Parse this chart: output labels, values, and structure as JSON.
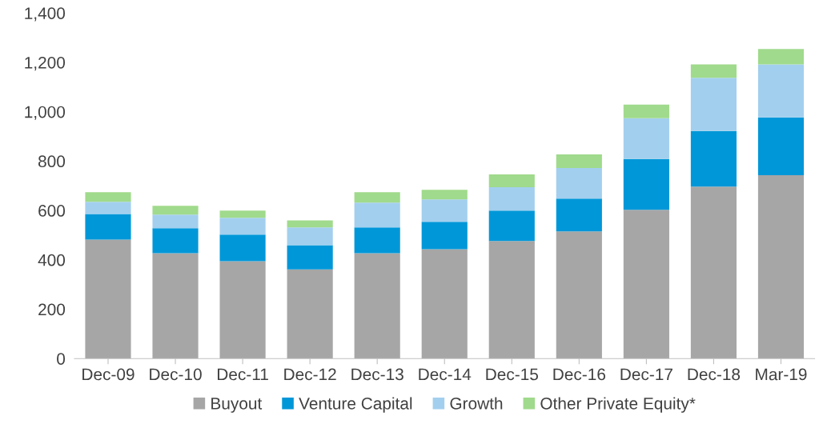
{
  "chart_data": {
    "type": "bar",
    "stacked": true,
    "categories": [
      "Dec-09",
      "Dec-10",
      "Dec-11",
      "Dec-12",
      "Dec-13",
      "Dec-14",
      "Dec-15",
      "Dec-16",
      "Dec-17",
      "Dec-18",
      "Mar-19"
    ],
    "series": [
      {
        "name": "Buyout",
        "color": "#a6a6a6",
        "values": [
          482,
          427,
          394,
          361,
          427,
          443,
          476,
          515,
          603,
          697,
          743
        ]
      },
      {
        "name": "Venture Capital",
        "color": "#0097d8",
        "values": [
          104,
          101,
          108,
          98,
          104,
          111,
          123,
          133,
          205,
          225,
          234
        ]
      },
      {
        "name": "Growth",
        "color": "#a3cfee",
        "values": [
          49,
          55,
          68,
          72,
          101,
          91,
          95,
          124,
          166,
          215,
          215
        ]
      },
      {
        "name": "Other Private Equity*",
        "color": "#a0da8c",
        "values": [
          39,
          36,
          29,
          29,
          42,
          39,
          52,
          55,
          55,
          55,
          62
        ]
      }
    ],
    "ylim": [
      0,
      1400
    ],
    "yticks": [
      0,
      {
        "value": 200,
        "label": "200"
      },
      {
        "value": 400,
        "label": "400"
      },
      {
        "value": 600,
        "label": "600"
      },
      {
        "value": 800,
        "label": "800"
      },
      {
        "value": 1000,
        "label": "1,000"
      },
      {
        "value": 1200,
        "label": "1,200"
      },
      {
        "value": 1400,
        "label": "1,400"
      }
    ],
    "grid": false,
    "legend": "bottom"
  }
}
